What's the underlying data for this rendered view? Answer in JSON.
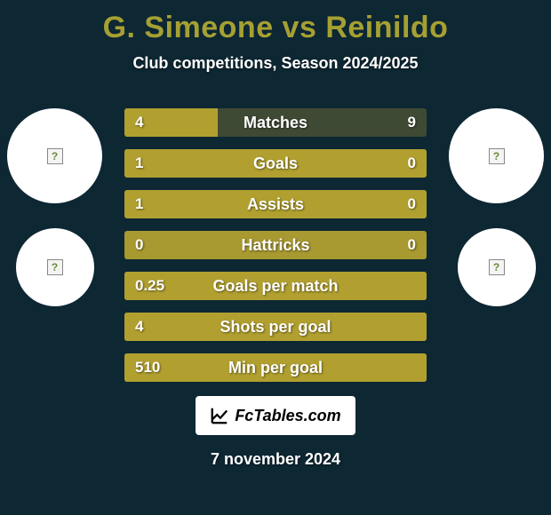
{
  "background_color": "#0d2733",
  "text_color": "#ffffff",
  "title_color": "#a6a033",
  "title": "G. Simeone vs Reinildo",
  "subtitle": "Club competitions, Season 2024/2025",
  "date": "7 november 2024",
  "footer_brand": "FcTables.com",
  "bar_track_color": "#3f4a34",
  "bar_fill_color": "#b1a030",
  "bar_track_full_color": "#a89930",
  "rows": [
    {
      "label": "Matches",
      "left": "4",
      "right": "9",
      "left_ratio": 0.31,
      "track_full": false
    },
    {
      "label": "Goals",
      "left": "1",
      "right": "0",
      "left_ratio": 1.0,
      "track_full": false
    },
    {
      "label": "Assists",
      "left": "1",
      "right": "0",
      "left_ratio": 1.0,
      "track_full": false
    },
    {
      "label": "Hattricks",
      "left": "0",
      "right": "0",
      "left_ratio": 0.0,
      "track_full": true
    },
    {
      "label": "Goals per match",
      "left": "0.25",
      "right": "",
      "left_ratio": 1.0,
      "track_full": true
    },
    {
      "label": "Shots per goal",
      "left": "4",
      "right": "",
      "left_ratio": 1.0,
      "track_full": true
    },
    {
      "label": "Min per goal",
      "left": "510",
      "right": "",
      "left_ratio": 1.0,
      "track_full": true
    }
  ],
  "circle_placeholder": "?"
}
